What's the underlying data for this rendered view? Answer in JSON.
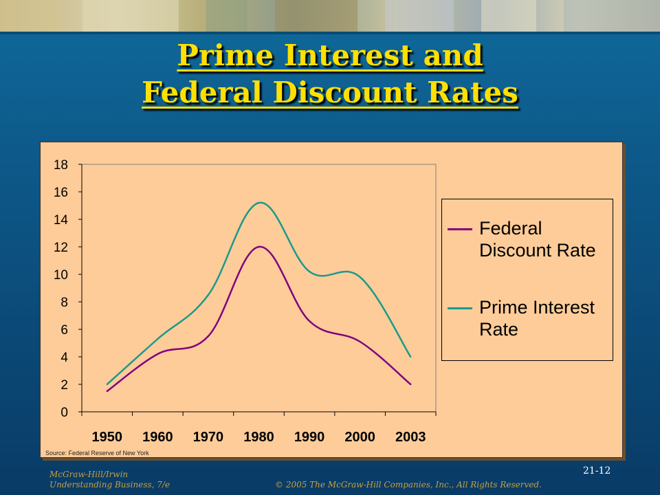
{
  "slide": {
    "title_line1": "Prime Interest and",
    "title_line2": "Federal Discount Rates",
    "footer_left_line1": "McGraw-Hill/Irwin",
    "footer_left_line2": "Understanding Business, 7/e",
    "footer_right": "© 2005 The McGraw-Hill Companies, Inc., All Rights Reserved.",
    "slide_number": "21-12",
    "title_color": "#ffe000",
    "background_color": "#0d5a8a"
  },
  "chart_data": {
    "type": "line",
    "categories": [
      "1950",
      "1960",
      "1970",
      "1980",
      "1990",
      "2000",
      "2003"
    ],
    "ylim": [
      0,
      18
    ],
    "yticks": [
      "0",
      "2",
      "4",
      "6",
      "8",
      "10",
      "12",
      "14",
      "16",
      "18"
    ],
    "grid": false,
    "legend_position": "right",
    "plot_background": "#fecc99",
    "series": [
      {
        "name": "Federal Discount Rate",
        "color": "#800080",
        "values": [
          1.5,
          4.2,
          5.5,
          12.0,
          6.6,
          5.1,
          2.0
        ]
      },
      {
        "name": "Prime Interest Rate",
        "color": "#1a9a8a",
        "values": [
          2.0,
          5.3,
          8.5,
          15.2,
          10.2,
          9.8,
          4.0
        ]
      }
    ],
    "source_note": "Source: Federal Reserve of New York"
  }
}
